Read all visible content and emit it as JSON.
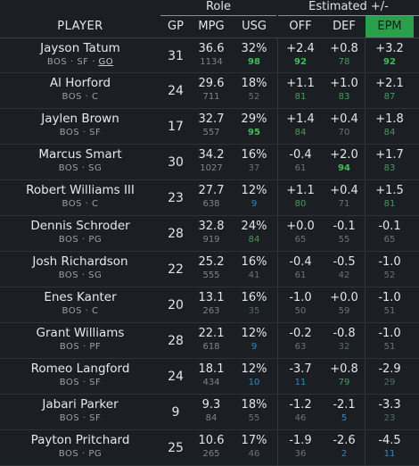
{
  "header": {
    "group_role": "Role",
    "group_estimated": "Estimated +/-",
    "columns": {
      "player": "PLAYER",
      "gp": "GP",
      "mpg": "MPG",
      "usg": "USG",
      "off": "OFF",
      "def": "DEF",
      "epm": "EPM"
    }
  },
  "colors": {
    "accent_epm": "#29a04c",
    "high_pct": "#3bbf55",
    "low_pct": "#2a88c4",
    "background": "#1b1f24"
  },
  "rows": [
    {
      "name": "Jayson Tatum",
      "team": "BOS",
      "pos": "SF",
      "extra": "GO",
      "gp": "31",
      "mpg": "36.6",
      "min": "1134",
      "usg": "32%",
      "usg_pct": "98",
      "off": "+2.4",
      "off_pct": "92",
      "def": "+0.8",
      "def_pct": "78",
      "epm": "+3.2",
      "epm_pct": "92"
    },
    {
      "name": "Al Horford",
      "team": "BOS",
      "pos": "C",
      "gp": "24",
      "mpg": "29.6",
      "min": "711",
      "usg": "18%",
      "usg_pct": "52",
      "off": "+1.1",
      "off_pct": "81",
      "def": "+1.0",
      "def_pct": "83",
      "epm": "+2.1",
      "epm_pct": "87"
    },
    {
      "name": "Jaylen Brown",
      "team": "BOS",
      "pos": "SF",
      "gp": "17",
      "mpg": "32.7",
      "min": "557",
      "usg": "29%",
      "usg_pct": "95",
      "off": "+1.4",
      "off_pct": "84",
      "def": "+0.4",
      "def_pct": "70",
      "epm": "+1.8",
      "epm_pct": "84"
    },
    {
      "name": "Marcus Smart",
      "team": "BOS",
      "pos": "SG",
      "gp": "30",
      "mpg": "34.2",
      "min": "1027",
      "usg": "16%",
      "usg_pct": "37",
      "off": "-0.4",
      "off_pct": "61",
      "def": "+2.0",
      "def_pct": "94",
      "epm": "+1.7",
      "epm_pct": "83"
    },
    {
      "name": "Robert Williams III",
      "team": "BOS",
      "pos": "C",
      "gp": "23",
      "mpg": "27.7",
      "min": "638",
      "usg": "12%",
      "usg_pct": "9",
      "off": "+1.1",
      "off_pct": "80",
      "def": "+0.4",
      "def_pct": "71",
      "epm": "+1.5",
      "epm_pct": "81"
    },
    {
      "name": "Dennis Schroder",
      "team": "BOS",
      "pos": "PG",
      "gp": "28",
      "mpg": "32.8",
      "min": "919",
      "usg": "24%",
      "usg_pct": "84",
      "off": "+0.0",
      "off_pct": "65",
      "def": "-0.1",
      "def_pct": "55",
      "epm": "-0.1",
      "epm_pct": "65"
    },
    {
      "name": "Josh Richardson",
      "team": "BOS",
      "pos": "SG",
      "gp": "22",
      "mpg": "25.2",
      "min": "555",
      "usg": "16%",
      "usg_pct": "41",
      "off": "-0.4",
      "off_pct": "61",
      "def": "-0.5",
      "def_pct": "42",
      "epm": "-1.0",
      "epm_pct": "52"
    },
    {
      "name": "Enes Kanter",
      "team": "BOS",
      "pos": "C",
      "gp": "20",
      "mpg": "13.1",
      "min": "263",
      "usg": "16%",
      "usg_pct": "35",
      "off": "-1.0",
      "off_pct": "50",
      "def": "+0.0",
      "def_pct": "59",
      "epm": "-1.0",
      "epm_pct": "51"
    },
    {
      "name": "Grant Williams",
      "team": "BOS",
      "pos": "PF",
      "gp": "28",
      "mpg": "22.1",
      "min": "618",
      "usg": "12%",
      "usg_pct": "9",
      "off": "-0.2",
      "off_pct": "63",
      "def": "-0.8",
      "def_pct": "32",
      "epm": "-1.0",
      "epm_pct": "51"
    },
    {
      "name": "Romeo Langford",
      "team": "BOS",
      "pos": "SF",
      "gp": "24",
      "mpg": "18.1",
      "min": "434",
      "usg": "12%",
      "usg_pct": "10",
      "off": "-3.7",
      "off_pct": "11",
      "def": "+0.8",
      "def_pct": "79",
      "epm": "-2.9",
      "epm_pct": "29"
    },
    {
      "name": "Jabari Parker",
      "team": "BOS",
      "pos": "SF",
      "gp": "9",
      "mpg": "9.3",
      "min": "84",
      "usg": "18%",
      "usg_pct": "55",
      "off": "-1.2",
      "off_pct": "46",
      "def": "-2.1",
      "def_pct": "5",
      "epm": "-3.3",
      "epm_pct": "23"
    },
    {
      "name": "Payton Pritchard",
      "team": "BOS",
      "pos": "PG",
      "gp": "25",
      "mpg": "10.6",
      "min": "265",
      "usg": "17%",
      "usg_pct": "46",
      "off": "-1.9",
      "off_pct": "36",
      "def": "-2.6",
      "def_pct": "2",
      "epm": "-4.5",
      "epm_pct": "11"
    }
  ]
}
